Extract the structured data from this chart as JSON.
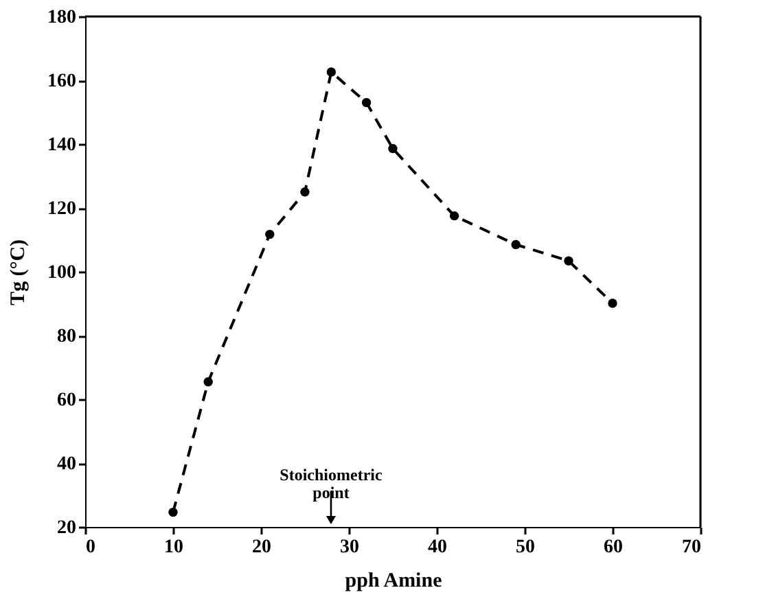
{
  "chart_data": {
    "type": "line",
    "xlabel": "pph Amine",
    "ylabel": "Tg (°C)",
    "x": [
      10,
      14,
      21,
      25,
      28,
      32,
      35,
      42,
      49,
      55,
      60
    ],
    "series": [
      {
        "color": "#000000",
        "values": [
          24.6,
          65.5,
          111.7,
          125,
          162.6,
          153,
          138.6,
          117.5,
          108.5,
          103.4,
          90.1
        ]
      }
    ],
    "xlim": [
      0,
      70
    ],
    "xticks": [
      0,
      10,
      20,
      30,
      40,
      50,
      60,
      70
    ],
    "ylim": [
      20,
      180
    ],
    "yticks": [
      20,
      40,
      60,
      80,
      100,
      120,
      140,
      160,
      180
    ],
    "marker": "circle",
    "line_style": "dashed",
    "grid": false,
    "annotations": [
      "Stoichiometric\npoint"
    ]
  }
}
